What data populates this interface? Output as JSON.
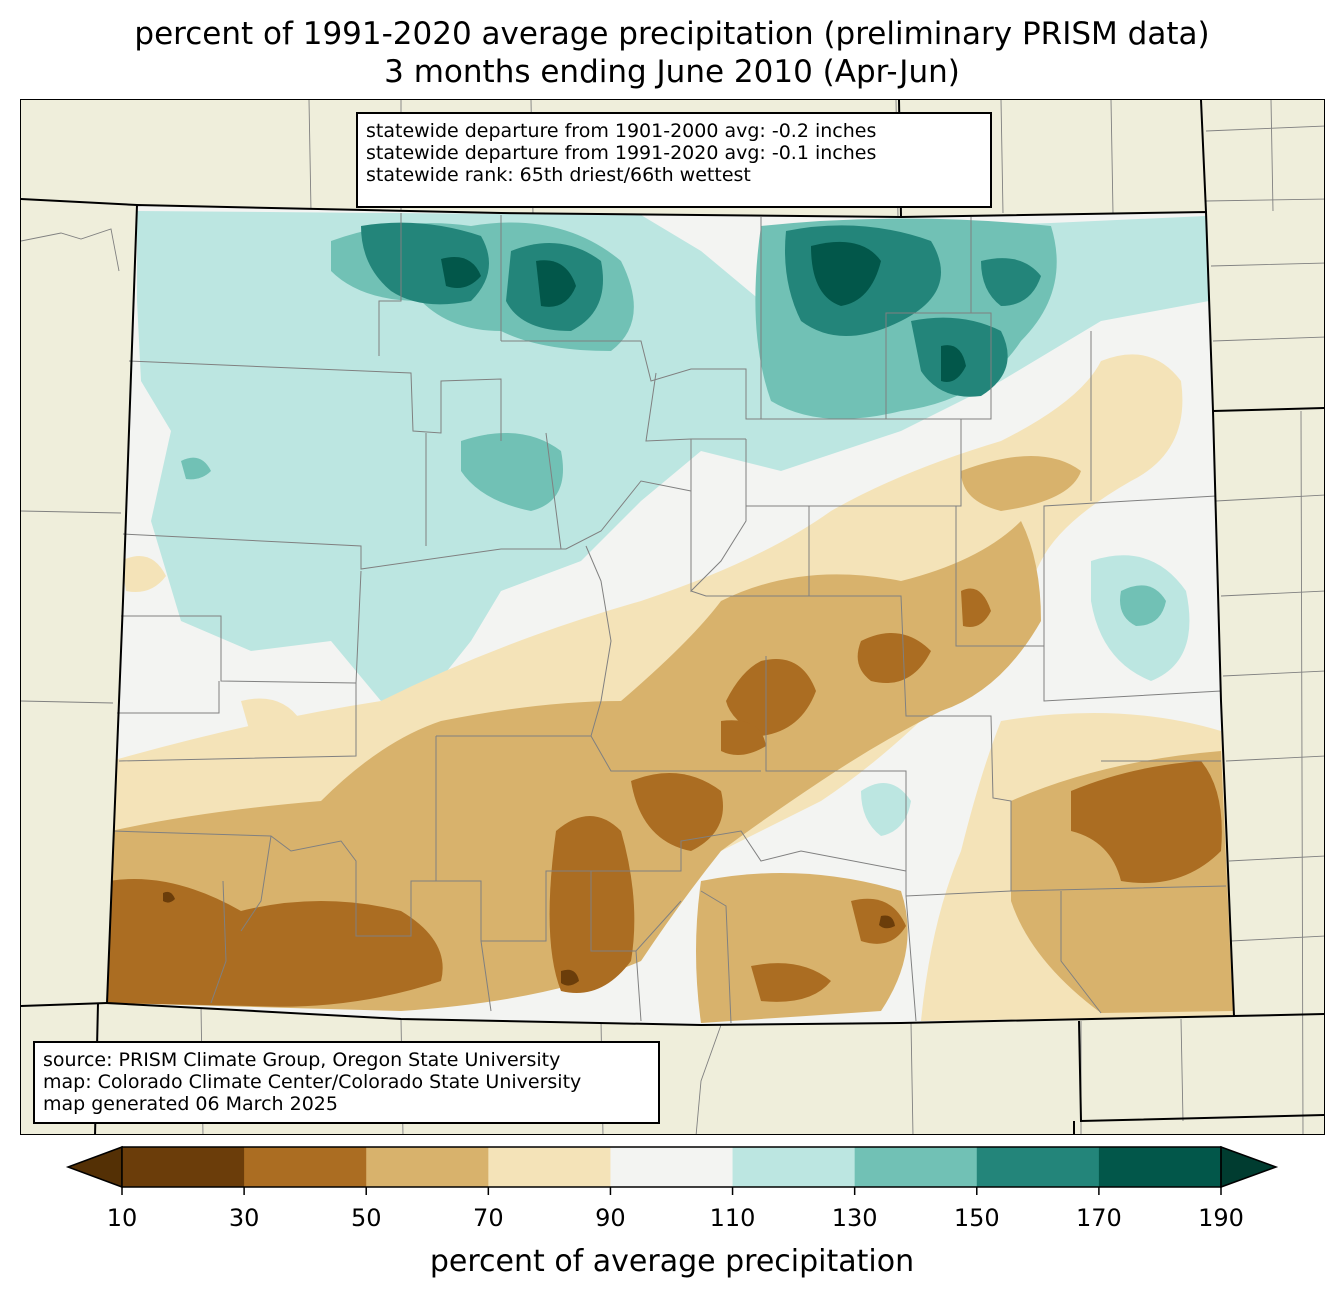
{
  "title": {
    "line1": "percent of 1991-2020 average precipitation (preliminary PRISM data)",
    "line2": "3 months ending June 2010 (Apr-Jun)"
  },
  "stats": {
    "departure_1901_2000": "statewide departure from 1901-2000 avg: -0.2 inches",
    "departure_1991_2020": "statewide departure from 1991-2020 avg: -0.1 inches",
    "rank": "statewide rank: 65th driest/66th wettest"
  },
  "source": {
    "line1": "source: PRISM Climate Group, Oregon State University",
    "line2": "map: Colorado Climate Center/Colorado State University",
    "line3": "map generated 06 March 2025"
  },
  "colorbar": {
    "label": "percent of average precipitation",
    "ticks": [
      "10",
      "30",
      "50",
      "70",
      "90",
      "110",
      "130",
      "150",
      "170",
      "190"
    ],
    "colors": [
      "#6b3d0a",
      "#ab6d22",
      "#d8b26c",
      "#f4e3b8",
      "#f3f4f2",
      "#bce6e1",
      "#71c1b5",
      "#23857a",
      "#02574a"
    ],
    "under_color": "#543005",
    "over_color": "#003c30"
  },
  "map_colors": {
    "land_outside": "#efeedb",
    "county_lines": "#808080",
    "state_lines": "#000000"
  }
}
